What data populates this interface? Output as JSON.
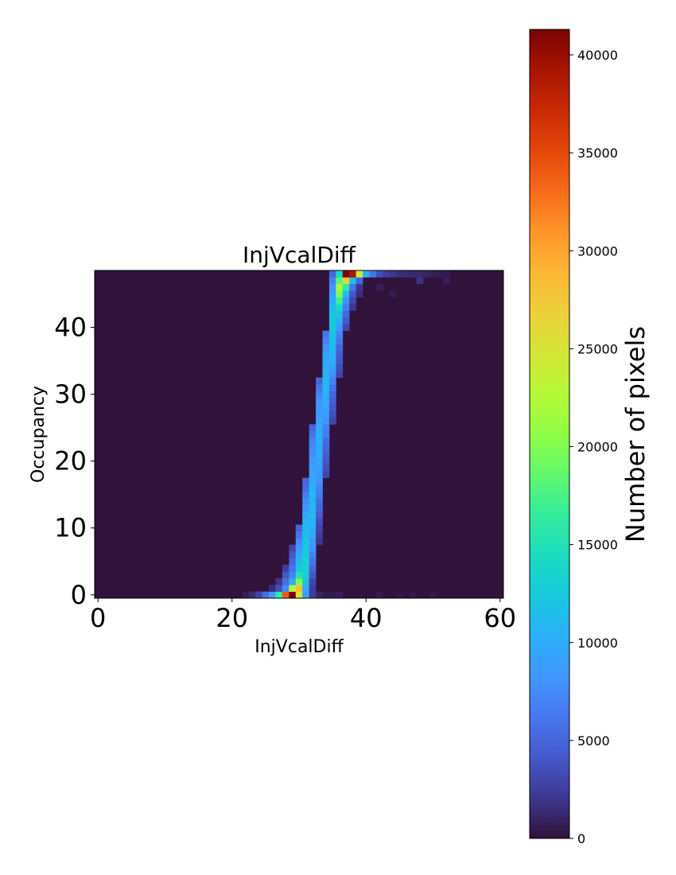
{
  "chart_data": {
    "type": "heatmap",
    "title": "InjVcalDiff",
    "xlabel": "InjVcalDiff",
    "ylabel": "Occupancy",
    "xlim": [
      -0.5,
      60.5
    ],
    "ylim": [
      -0.5,
      48.5
    ],
    "x_ticks": [
      0,
      20,
      40,
      60
    ],
    "y_ticks": [
      0,
      10,
      20,
      30,
      40
    ],
    "colorbar": {
      "label": "Number of pixels",
      "colormap": "turbo",
      "min": 0,
      "max": 41300,
      "ticks": [
        0,
        5000,
        10000,
        15000,
        20000,
        25000,
        30000,
        35000,
        40000
      ]
    },
    "grid": false,
    "legend": "none",
    "nonzero_cells": [
      [
        22,
        0,
        700
      ],
      [
        23,
        0,
        1500
      ],
      [
        24,
        0,
        3000
      ],
      [
        25,
        0,
        5500
      ],
      [
        26,
        0,
        8500
      ],
      [
        27,
        0,
        16000
      ],
      [
        28,
        0,
        34000
      ],
      [
        29,
        0,
        41300
      ],
      [
        30,
        0,
        25000
      ],
      [
        31,
        0,
        9000
      ],
      [
        32,
        0,
        2500
      ],
      [
        33,
        0,
        1000
      ],
      [
        26,
        1,
        1500
      ],
      [
        27,
        1,
        3500
      ],
      [
        28,
        1,
        7500
      ],
      [
        29,
        1,
        23000
      ],
      [
        30,
        1,
        28000
      ],
      [
        31,
        1,
        10000
      ],
      [
        32,
        1,
        2500
      ],
      [
        27,
        2,
        2000
      ],
      [
        28,
        2,
        5500
      ],
      [
        29,
        2,
        10000
      ],
      [
        30,
        2,
        20000
      ],
      [
        31,
        2,
        12000
      ],
      [
        32,
        2,
        3000
      ],
      [
        28,
        3,
        4000
      ],
      [
        29,
        3,
        7000
      ],
      [
        30,
        3,
        15000
      ],
      [
        31,
        3,
        13000
      ],
      [
        32,
        3,
        4000
      ],
      [
        28,
        4,
        2500
      ],
      [
        29,
        4,
        6000
      ],
      [
        30,
        4,
        12500
      ],
      [
        31,
        4,
        13000
      ],
      [
        32,
        4,
        5000
      ],
      [
        29,
        5,
        5000
      ],
      [
        30,
        5,
        11000
      ],
      [
        31,
        5,
        13500
      ],
      [
        32,
        5,
        6000
      ],
      [
        29,
        6,
        4000
      ],
      [
        30,
        6,
        9500
      ],
      [
        31,
        6,
        13000
      ],
      [
        32,
        6,
        7000
      ],
      [
        29,
        7,
        3000
      ],
      [
        30,
        7,
        8500
      ],
      [
        31,
        7,
        12500
      ],
      [
        32,
        7,
        8000
      ],
      [
        30,
        8,
        7500
      ],
      [
        31,
        8,
        12500
      ],
      [
        32,
        8,
        8500
      ],
      [
        33,
        8,
        2000
      ],
      [
        30,
        9,
        6000
      ],
      [
        31,
        9,
        11500
      ],
      [
        32,
        9,
        9500
      ],
      [
        33,
        9,
        2500
      ],
      [
        30,
        10,
        5000
      ],
      [
        31,
        10,
        11000
      ],
      [
        32,
        10,
        10000
      ],
      [
        33,
        10,
        3000
      ],
      [
        31,
        11,
        10500
      ],
      [
        32,
        11,
        10500
      ],
      [
        33,
        11,
        3500
      ],
      [
        31,
        12,
        9500
      ],
      [
        32,
        12,
        11000
      ],
      [
        33,
        12,
        4500
      ],
      [
        31,
        13,
        8500
      ],
      [
        32,
        13,
        11000
      ],
      [
        33,
        13,
        5000
      ],
      [
        31,
        14,
        7500
      ],
      [
        32,
        14,
        11000
      ],
      [
        33,
        14,
        5500
      ],
      [
        31,
        15,
        6500
      ],
      [
        32,
        15,
        11000
      ],
      [
        33,
        15,
        6500
      ],
      [
        31,
        16,
        5500
      ],
      [
        32,
        16,
        10500
      ],
      [
        33,
        16,
        7000
      ],
      [
        31,
        17,
        5000
      ],
      [
        32,
        17,
        10000
      ],
      [
        33,
        17,
        8000
      ],
      [
        32,
        18,
        9500
      ],
      [
        33,
        18,
        8500
      ],
      [
        34,
        18,
        3000
      ],
      [
        32,
        19,
        9000
      ],
      [
        33,
        19,
        9000
      ],
      [
        34,
        19,
        3500
      ],
      [
        32,
        20,
        8500
      ],
      [
        33,
        20,
        9500
      ],
      [
        34,
        20,
        4000
      ],
      [
        32,
        21,
        8000
      ],
      [
        33,
        21,
        10000
      ],
      [
        34,
        21,
        4500
      ],
      [
        32,
        22,
        7500
      ],
      [
        33,
        22,
        10000
      ],
      [
        34,
        22,
        5000
      ],
      [
        32,
        23,
        7000
      ],
      [
        33,
        23,
        10500
      ],
      [
        34,
        23,
        5500
      ],
      [
        32,
        24,
        6000
      ],
      [
        33,
        24,
        10500
      ],
      [
        34,
        24,
        6500
      ],
      [
        32,
        25,
        5000
      ],
      [
        33,
        25,
        10000
      ],
      [
        34,
        25,
        7000
      ],
      [
        33,
        26,
        9500
      ],
      [
        34,
        26,
        8000
      ],
      [
        35,
        26,
        3000
      ],
      [
        33,
        27,
        9000
      ],
      [
        34,
        27,
        9000
      ],
      [
        35,
        27,
        3500
      ],
      [
        33,
        28,
        8500
      ],
      [
        34,
        28,
        9500
      ],
      [
        35,
        28,
        4000
      ],
      [
        33,
        29,
        8000
      ],
      [
        34,
        29,
        10000
      ],
      [
        35,
        29,
        4500
      ],
      [
        33,
        30,
        7000
      ],
      [
        34,
        30,
        10500
      ],
      [
        35,
        30,
        5000
      ],
      [
        33,
        31,
        6000
      ],
      [
        34,
        31,
        11000
      ],
      [
        35,
        31,
        6000
      ],
      [
        33,
        32,
        5000
      ],
      [
        34,
        32,
        11000
      ],
      [
        35,
        32,
        7000
      ],
      [
        34,
        33,
        10500
      ],
      [
        35,
        33,
        8000
      ],
      [
        36,
        33,
        3000
      ],
      [
        34,
        34,
        10000
      ],
      [
        35,
        34,
        9000
      ],
      [
        36,
        34,
        3500
      ],
      [
        34,
        35,
        9500
      ],
      [
        35,
        35,
        10000
      ],
      [
        36,
        35,
        4000
      ],
      [
        34,
        36,
        9000
      ],
      [
        35,
        36,
        10500
      ],
      [
        36,
        36,
        4500
      ],
      [
        34,
        37,
        8000
      ],
      [
        35,
        37,
        11000
      ],
      [
        36,
        37,
        5000
      ],
      [
        34,
        38,
        7000
      ],
      [
        35,
        38,
        11500
      ],
      [
        36,
        38,
        6000
      ],
      [
        34,
        39,
        6000
      ],
      [
        35,
        39,
        12000
      ],
      [
        36,
        39,
        7000
      ],
      [
        35,
        40,
        12500
      ],
      [
        36,
        40,
        8500
      ],
      [
        37,
        40,
        3000
      ],
      [
        35,
        41,
        12500
      ],
      [
        36,
        41,
        10000
      ],
      [
        37,
        41,
        4000
      ],
      [
        35,
        42,
        12000
      ],
      [
        36,
        42,
        12000
      ],
      [
        37,
        42,
        5000
      ],
      [
        35,
        43,
        11000
      ],
      [
        36,
        43,
        14000
      ],
      [
        37,
        43,
        6500
      ],
      [
        38,
        43,
        2000
      ],
      [
        35,
        44,
        10000
      ],
      [
        36,
        44,
        17000
      ],
      [
        37,
        44,
        8000
      ],
      [
        38,
        44,
        3000
      ],
      [
        35,
        45,
        9000
      ],
      [
        36,
        45,
        20000
      ],
      [
        37,
        45,
        11000
      ],
      [
        38,
        45,
        4000
      ],
      [
        39,
        45,
        1500
      ],
      [
        35,
        46,
        8000
      ],
      [
        36,
        46,
        22000
      ],
      [
        37,
        46,
        16000
      ],
      [
        38,
        46,
        6000
      ],
      [
        39,
        46,
        2000
      ],
      [
        35,
        47,
        7000
      ],
      [
        36,
        47,
        18000
      ],
      [
        37,
        47,
        27000
      ],
      [
        38,
        47,
        12000
      ],
      [
        39,
        47,
        5000
      ],
      [
        35,
        48,
        5000
      ],
      [
        36,
        48,
        14000
      ],
      [
        37,
        48,
        41300
      ],
      [
        38,
        48,
        39000
      ],
      [
        39,
        48,
        24000
      ],
      [
        40,
        48,
        10000
      ],
      [
        41,
        48,
        6000
      ],
      [
        42,
        48,
        3500
      ],
      [
        43,
        48,
        2500
      ],
      [
        44,
        48,
        2000
      ],
      [
        45,
        48,
        1500
      ],
      [
        46,
        48,
        1500
      ],
      [
        47,
        48,
        1200
      ],
      [
        48,
        48,
        1200
      ],
      [
        49,
        48,
        1000
      ],
      [
        50,
        48,
        800
      ],
      [
        51,
        48,
        600
      ],
      [
        52,
        48,
        500
      ],
      [
        42,
        46,
        800
      ],
      [
        44,
        45,
        600
      ],
      [
        48,
        47,
        1800
      ],
      [
        52,
        47,
        700
      ],
      [
        24,
        0,
        3000
      ],
      [
        34,
        0,
        500
      ],
      [
        35,
        0,
        400
      ],
      [
        36,
        0,
        700
      ],
      [
        42,
        0,
        600
      ],
      [
        45,
        0,
        400
      ],
      [
        47,
        0,
        500
      ],
      [
        50,
        0,
        400
      ]
    ]
  }
}
